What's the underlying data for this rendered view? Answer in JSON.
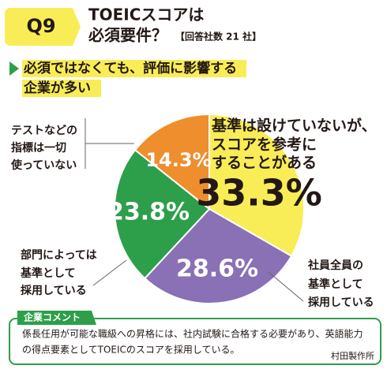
{
  "badge": "Q9",
  "chart_data": {
    "type": "pie",
    "title": [
      "TOEICスコアは",
      "必須要件？"
    ],
    "note": "【回答社数 21 社】",
    "subtitle": [
      "必須ではなくても、評価に影響する",
      "企業が多い"
    ],
    "categories": [
      [
        "基準は設けていないが、",
        "スコアを参考に",
        "することがある"
      ],
      [
        "社員全員の",
        "基準として",
        "採用している"
      ],
      [
        "部門によっては",
        "基準として",
        "採用している"
      ],
      [
        "テストなどの",
        "指標は一切",
        "使っていない"
      ]
    ],
    "values": [
      33.3,
      28.6,
      23.8,
      14.3
    ],
    "value_labels": [
      "33.3%",
      "28.6%",
      "23.8%",
      "14.3%"
    ],
    "colors": [
      "#f8ed56",
      "#8a70b4",
      "#2d9f4a",
      "#ee8e2d"
    ]
  },
  "comment": {
    "label": "企業コメント",
    "lines": [
      "係長任用が可能な職級への昇格には、社内試験に合格する必要があり、英語能力",
      "の得点要素としてTOEICのスコアを採用している。"
    ],
    "source": "村田製作所"
  }
}
